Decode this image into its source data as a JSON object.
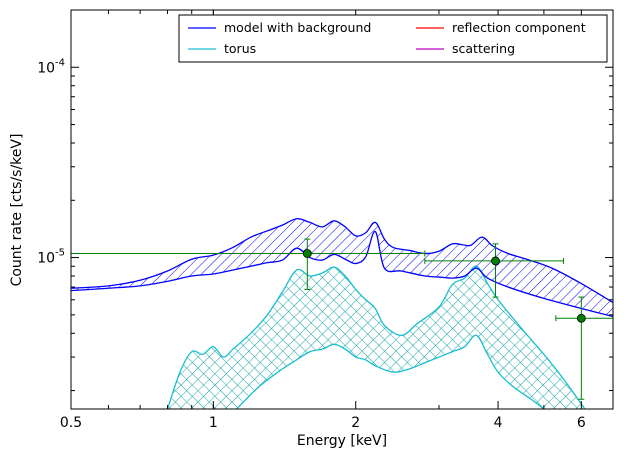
{
  "chart_data": {
    "type": "line",
    "xlabel": "Energy [keV]",
    "ylabel": "Count rate [cts/s/keV]",
    "xscale": "log",
    "yscale": "log",
    "xlim": [
      0.5,
      7.0
    ],
    "ylim": [
      1.6e-06,
      0.0002
    ],
    "x_ticks": [
      {
        "value": 0.5,
        "label": "0.5"
      },
      {
        "value": 1,
        "label": "1"
      },
      {
        "value": 2,
        "label": "2"
      },
      {
        "value": 4,
        "label": "4"
      },
      {
        "value": 6,
        "label": "6"
      }
    ],
    "y_ticks": [
      {
        "value": 1e-05,
        "base": "10",
        "exp": "-5"
      },
      {
        "value": 0.0001,
        "base": "10",
        "exp": "-4"
      }
    ],
    "legend": {
      "placement": "top-right",
      "columns": 2,
      "entries": [
        {
          "label": "model with background",
          "color": "#0000ff"
        },
        {
          "label": "reflection component",
          "color": "#ff0000"
        },
        {
          "label": "torus",
          "color": "#17becf"
        },
        {
          "label": "scattering",
          "color": "#bf00bf"
        }
      ]
    },
    "series": [
      {
        "name": "model with background",
        "kind": "band",
        "color": "#0000ff",
        "hatch": "diagonal",
        "upper": [
          [
            0.5,
            6.9e-06
          ],
          [
            0.6,
            7.1e-06
          ],
          [
            0.7,
            7.6e-06
          ],
          [
            0.8,
            8.5e-06
          ],
          [
            0.9,
            9.8e-06
          ],
          [
            1.0,
            1.03e-05
          ],
          [
            1.1,
            1.13e-05
          ],
          [
            1.2,
            1.28e-05
          ],
          [
            1.3,
            1.38e-05
          ],
          [
            1.4,
            1.48e-05
          ],
          [
            1.5,
            1.6e-05
          ],
          [
            1.6,
            1.53e-05
          ],
          [
            1.7,
            1.45e-05
          ],
          [
            1.8,
            1.56e-05
          ],
          [
            1.9,
            1.45e-05
          ],
          [
            2.0,
            1.3e-05
          ],
          [
            2.1,
            1.35e-05
          ],
          [
            2.2,
            1.53e-05
          ],
          [
            2.3,
            1.25e-05
          ],
          [
            2.4,
            1.13e-05
          ],
          [
            2.6,
            1.09e-05
          ],
          [
            2.8,
            1.05e-05
          ],
          [
            3.0,
            1.08e-05
          ],
          [
            3.2,
            1.18e-05
          ],
          [
            3.35,
            1.17e-05
          ],
          [
            3.5,
            1.16e-05
          ],
          [
            3.7,
            1.28e-05
          ],
          [
            3.9,
            1.15e-05
          ],
          [
            4.2,
            1.05e-05
          ],
          [
            4.6,
            9.8e-06
          ],
          [
            5.2,
            8.8e-06
          ],
          [
            6.0,
            7.3e-06
          ],
          [
            7.0,
            5.8e-06
          ]
        ],
        "lower": [
          [
            0.5,
            6.7e-06
          ],
          [
            0.6,
            6.9e-06
          ],
          [
            0.7,
            7.1e-06
          ],
          [
            0.8,
            7.5e-06
          ],
          [
            0.9,
            8e-06
          ],
          [
            1.0,
            8.2e-06
          ],
          [
            1.1,
            8.6e-06
          ],
          [
            1.2,
            9e-06
          ],
          [
            1.3,
            9.4e-06
          ],
          [
            1.4,
            9.7e-06
          ],
          [
            1.5,
            1.12e-05
          ],
          [
            1.6,
            1e-05
          ],
          [
            1.7,
            9.7e-06
          ],
          [
            1.8,
            1.04e-05
          ],
          [
            1.9,
            9.8e-06
          ],
          [
            2.0,
            9.3e-06
          ],
          [
            2.1,
            1.01e-05
          ],
          [
            2.2,
            1.37e-05
          ],
          [
            2.3,
            8.8e-06
          ],
          [
            2.5,
            8.5e-06
          ],
          [
            2.8,
            8e-06
          ],
          [
            3.0,
            7.9e-06
          ],
          [
            3.2,
            7.8e-06
          ],
          [
            3.4,
            8e-06
          ],
          [
            3.6,
            8.8e-06
          ],
          [
            3.8,
            7.8e-06
          ],
          [
            4.2,
            7e-06
          ],
          [
            5.0,
            6.1e-06
          ],
          [
            6.0,
            5.4e-06
          ],
          [
            7.0,
            4.9e-06
          ]
        ]
      },
      {
        "name": "torus",
        "kind": "band",
        "color": "#17becf",
        "hatch": "cross",
        "upper": [
          [
            0.8,
            1.6e-06
          ],
          [
            0.85,
            2.5e-06
          ],
          [
            0.9,
            3.2e-06
          ],
          [
            0.95,
            3.1e-06
          ],
          [
            1.0,
            3.4e-06
          ],
          [
            1.05,
            3e-06
          ],
          [
            1.1,
            3.3e-06
          ],
          [
            1.2,
            4e-06
          ],
          [
            1.3,
            5e-06
          ],
          [
            1.4,
            6.6e-06
          ],
          [
            1.5,
            8.6e-06
          ],
          [
            1.6,
            8e-06
          ],
          [
            1.7,
            8.3e-06
          ],
          [
            1.8,
            8.9e-06
          ],
          [
            1.9,
            8e-06
          ],
          [
            2.0,
            6.8e-06
          ],
          [
            2.1,
            6e-06
          ],
          [
            2.2,
            5.4e-06
          ],
          [
            2.3,
            4.4e-06
          ],
          [
            2.5,
            3.9e-06
          ],
          [
            2.7,
            4.5e-06
          ],
          [
            3.0,
            5.5e-06
          ],
          [
            3.2,
            7.2e-06
          ],
          [
            3.4,
            7.8e-06
          ],
          [
            3.6,
            9e-06
          ],
          [
            3.8,
            7.3e-06
          ],
          [
            4.0,
            6e-06
          ],
          [
            4.5,
            4.2e-06
          ],
          [
            5.0,
            3.1e-06
          ],
          [
            5.5,
            2.3e-06
          ],
          [
            6.0,
            1.7e-06
          ],
          [
            6.1,
            1.6e-06
          ]
        ],
        "lower": [
          [
            1.12,
            1.6e-06
          ],
          [
            1.25,
            2.1e-06
          ],
          [
            1.4,
            2.6e-06
          ],
          [
            1.5,
            2.9e-06
          ],
          [
            1.6,
            3.2e-06
          ],
          [
            1.7,
            3.3e-06
          ],
          [
            1.8,
            3.5e-06
          ],
          [
            1.9,
            3.3e-06
          ],
          [
            2.0,
            3e-06
          ],
          [
            2.1,
            2.9e-06
          ],
          [
            2.2,
            2.7e-06
          ],
          [
            2.4,
            2.5e-06
          ],
          [
            2.6,
            2.6e-06
          ],
          [
            2.8,
            2.8e-06
          ],
          [
            3.0,
            3e-06
          ],
          [
            3.2,
            3.2e-06
          ],
          [
            3.4,
            3.4e-06
          ],
          [
            3.6,
            3.9e-06
          ],
          [
            3.8,
            3.1e-06
          ],
          [
            4.0,
            2.5e-06
          ],
          [
            4.3,
            2.1e-06
          ],
          [
            4.7,
            1.8e-06
          ],
          [
            5.0,
            1.6e-06
          ]
        ]
      }
    ],
    "data_points": {
      "color": "#008000",
      "points": [
        {
          "x": 1.58,
          "y": 1.05e-05,
          "xlo": 0.5,
          "xhi": 2.8,
          "ylo": 6.8e-06,
          "yhi": 1.25e-05
        },
        {
          "x": 3.95,
          "y": 9.6e-06,
          "xlo": 2.8,
          "xhi": 5.5,
          "ylo": 6.2e-06,
          "yhi": 1.18e-05
        },
        {
          "x": 6.0,
          "y": 4.8e-06,
          "xlo": 5.3,
          "xhi": 7.0,
          "ylo": 1.8e-06,
          "yhi": 6.2e-06
        }
      ]
    },
    "grid": false
  }
}
